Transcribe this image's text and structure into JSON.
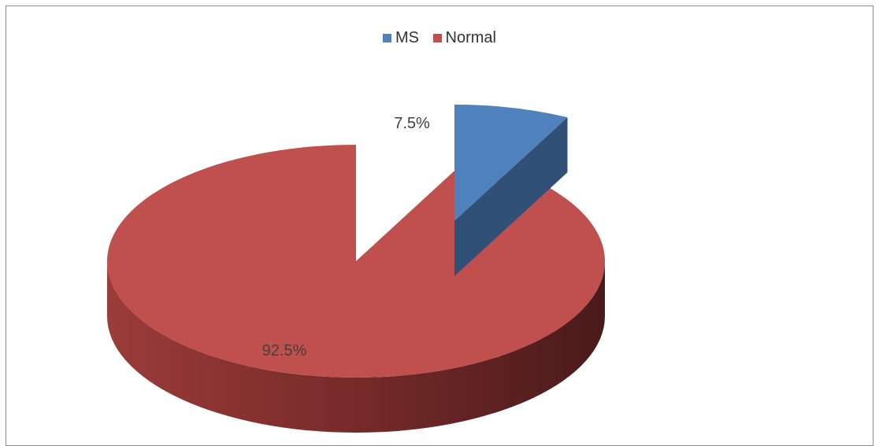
{
  "chart_data": {
    "type": "pie",
    "title": "",
    "legend_position": "top",
    "exploded": "MS",
    "style": "3d",
    "slices": [
      {
        "name": "MS",
        "value": 7.5,
        "label": "7.5%",
        "color": "#4f81bd"
      },
      {
        "name": "Normal",
        "value": 92.5,
        "label": "92.5%",
        "color": "#c0504d"
      }
    ]
  },
  "legend": {
    "items": [
      {
        "label": "MS",
        "color": "#4f81bd"
      },
      {
        "label": "Normal",
        "color": "#c0504d"
      }
    ]
  }
}
